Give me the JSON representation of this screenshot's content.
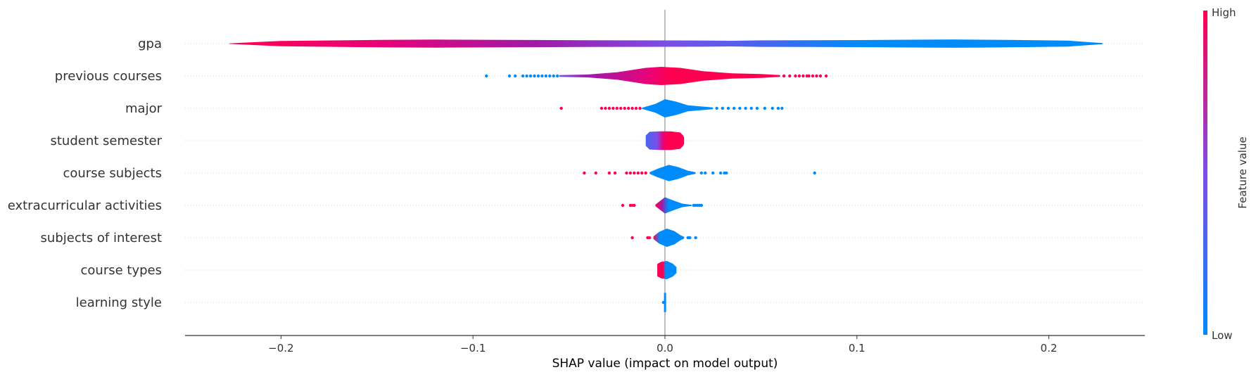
{
  "chart_data": {
    "type": "violin",
    "xlabel": "SHAP value (impact on model output)",
    "xlim": [
      -0.25,
      0.25
    ],
    "xticks": [
      -0.2,
      -0.1,
      0.0,
      0.1,
      0.2
    ],
    "xtick_labels": [
      "−0.2",
      "−0.1",
      "0.0",
      "0.1",
      "0.2"
    ],
    "colorbar": {
      "label": "Feature value",
      "high_label": "High",
      "low_label": "Low",
      "low_color": "#008bfb",
      "high_color": "#ff0051"
    },
    "grid": "dotted horizontal row lines",
    "features": [
      {
        "name": "gpa",
        "min": -0.227,
        "max": 0.228,
        "color_stops": [
          [
            0,
            "#ff0051"
          ],
          [
            0.18,
            "#e6037a"
          ],
          [
            0.35,
            "#a01aa6"
          ],
          [
            0.5,
            "#7d4de6"
          ],
          [
            0.62,
            "#4466f0"
          ],
          [
            0.72,
            "#008bfb"
          ],
          [
            1,
            "#008bfb"
          ]
        ],
        "profile": [
          [
            -0.227,
            0.02
          ],
          [
            -0.2,
            0.18
          ],
          [
            -0.15,
            0.25
          ],
          [
            -0.12,
            0.27
          ],
          [
            -0.08,
            0.25
          ],
          [
            -0.04,
            0.23
          ],
          [
            -0.01,
            0.22
          ],
          [
            0.02,
            0.21
          ],
          [
            0.035,
            0.19
          ],
          [
            0.05,
            0.22
          ],
          [
            0.1,
            0.24
          ],
          [
            0.15,
            0.28
          ],
          [
            0.18,
            0.25
          ],
          [
            0.21,
            0.2
          ],
          [
            0.228,
            0.04
          ]
        ],
        "left_points": [],
        "right_points": []
      },
      {
        "name": "previous courses",
        "min": -0.055,
        "max": 0.06,
        "color_stops": [
          [
            0,
            "#7d4de6"
          ],
          [
            0.15,
            "#a01aa6"
          ],
          [
            0.4,
            "#e6037a"
          ],
          [
            0.5,
            "#ff0051"
          ],
          [
            1,
            "#ff0051"
          ]
        ],
        "profile": [
          [
            -0.055,
            0.06
          ],
          [
            -0.04,
            0.1
          ],
          [
            -0.025,
            0.25
          ],
          [
            -0.01,
            0.55
          ],
          [
            -0.002,
            0.62
          ],
          [
            0.008,
            0.55
          ],
          [
            0.02,
            0.32
          ],
          [
            0.035,
            0.18
          ],
          [
            0.05,
            0.13
          ],
          [
            0.06,
            0.06
          ]
        ],
        "left_points": [
          -0.093,
          -0.081,
          -0.078,
          -0.074,
          -0.072,
          -0.07,
          -0.068,
          -0.066,
          -0.064,
          -0.062,
          -0.06,
          -0.058,
          -0.056
        ],
        "left_color": "#008bfb",
        "right_points": [
          0.062,
          0.065,
          0.068,
          0.07,
          0.072,
          0.074,
          0.075,
          0.077,
          0.079,
          0.081,
          0.084
        ],
        "right_color": "#ff0051"
      },
      {
        "name": "major",
        "min": -0.012,
        "max": 0.025,
        "color_stops": [
          [
            0,
            "#008bfb"
          ],
          [
            1,
            "#008bfb"
          ]
        ],
        "profile": [
          [
            -0.012,
            0.04
          ],
          [
            -0.005,
            0.3
          ],
          [
            0.0,
            0.62
          ],
          [
            0.006,
            0.45
          ],
          [
            0.012,
            0.2
          ],
          [
            0.025,
            0.06
          ]
        ],
        "left_points": [
          -0.054,
          -0.033,
          -0.031,
          -0.029,
          -0.027,
          -0.025,
          -0.023,
          -0.021,
          -0.019,
          -0.017,
          -0.015,
          -0.013
        ],
        "left_color": "#ff0051",
        "right_points": [
          0.027,
          0.03,
          0.033,
          0.036,
          0.039,
          0.042,
          0.045,
          0.048,
          0.052,
          0.056,
          0.059,
          0.061
        ],
        "right_color": "#008bfb"
      },
      {
        "name": "student semester",
        "min": -0.01,
        "max": 0.01,
        "color_stops": [
          [
            0,
            "#4466f0"
          ],
          [
            0.3,
            "#7d4de6"
          ],
          [
            0.45,
            "#e6037a"
          ],
          [
            0.55,
            "#ff0051"
          ],
          [
            1,
            "#ff0051"
          ]
        ],
        "profile": [
          [
            -0.01,
            0.35
          ],
          [
            -0.008,
            0.6
          ],
          [
            -0.003,
            0.63
          ],
          [
            0.003,
            0.63
          ],
          [
            0.008,
            0.55
          ],
          [
            0.0095,
            0.35
          ],
          [
            0.01,
            0.2
          ]
        ],
        "left_points": [],
        "right_points": []
      },
      {
        "name": "course subjects",
        "min": -0.008,
        "max": 0.016,
        "color_stops": [
          [
            0,
            "#008bfb"
          ],
          [
            1,
            "#008bfb"
          ]
        ],
        "profile": [
          [
            -0.008,
            0.05
          ],
          [
            -0.004,
            0.28
          ],
          [
            0.002,
            0.55
          ],
          [
            0.007,
            0.4
          ],
          [
            0.012,
            0.15
          ],
          [
            0.016,
            0.05
          ]
        ],
        "left_points": [
          -0.042,
          -0.036,
          -0.029,
          -0.026,
          -0.02,
          -0.018,
          -0.016,
          -0.014,
          -0.012,
          -0.01
        ],
        "left_color": "#ff0051",
        "right_points": [
          0.019,
          0.021,
          0.025,
          0.029,
          0.031,
          0.032,
          0.078
        ],
        "right_color": "#008bfb"
      },
      {
        "name": "extracurricular activities",
        "min": -0.005,
        "max": 0.014,
        "color_stops": [
          [
            0,
            "#ff0051"
          ],
          [
            0.18,
            "#a01aa6"
          ],
          [
            0.35,
            "#008bfb"
          ],
          [
            1,
            "#008bfb"
          ]
        ],
        "profile": [
          [
            -0.005,
            0.05
          ],
          [
            -0.002,
            0.35
          ],
          [
            0.0,
            0.55
          ],
          [
            0.004,
            0.35
          ],
          [
            0.009,
            0.12
          ],
          [
            0.014,
            0.04
          ]
        ],
        "left_points": [
          -0.022,
          -0.018,
          -0.017,
          -0.016
        ],
        "left_color": "#ff0051",
        "right_points": [
          0.015,
          0.016,
          0.017,
          0.018,
          0.019
        ],
        "right_color": "#008bfb"
      },
      {
        "name": "subjects of interest",
        "min": -0.006,
        "max": 0.01,
        "color_stops": [
          [
            0,
            "#ff0051"
          ],
          [
            0.2,
            "#008bfb"
          ],
          [
            1,
            "#008bfb"
          ]
        ],
        "profile": [
          [
            -0.006,
            0.08
          ],
          [
            -0.003,
            0.4
          ],
          [
            0.001,
            0.62
          ],
          [
            0.005,
            0.45
          ],
          [
            0.008,
            0.18
          ],
          [
            0.01,
            0.06
          ]
        ],
        "left_points": [
          -0.017,
          -0.009,
          -0.008
        ],
        "left_color": "#ff0051",
        "right_points": [
          0.012,
          0.013,
          0.016
        ],
        "right_color": "#008bfb"
      },
      {
        "name": "course types",
        "min": -0.004,
        "max": 0.006,
        "color_stops": [
          [
            0,
            "#ff0051"
          ],
          [
            0.3,
            "#ff0051"
          ],
          [
            0.42,
            "#008bfb"
          ],
          [
            1,
            "#008bfb"
          ]
        ],
        "profile": [
          [
            -0.004,
            0.42
          ],
          [
            -0.002,
            0.55
          ],
          [
            0.001,
            0.62
          ],
          [
            0.004,
            0.45
          ],
          [
            0.006,
            0.2
          ]
        ],
        "left_points": [],
        "right_points": []
      },
      {
        "name": "learning style",
        "min": -0.0005,
        "max": 0.0006,
        "color_stops": [
          [
            0,
            "#008bfb"
          ],
          [
            1,
            "#008bfb"
          ]
        ],
        "profile": [
          [
            -0.0005,
            0.65
          ],
          [
            0.0006,
            0.65
          ]
        ],
        "left_points": [
          -0.0008
        ],
        "left_color": "#008bfb",
        "right_points": [],
        "right_color": "#008bfb"
      }
    ]
  }
}
